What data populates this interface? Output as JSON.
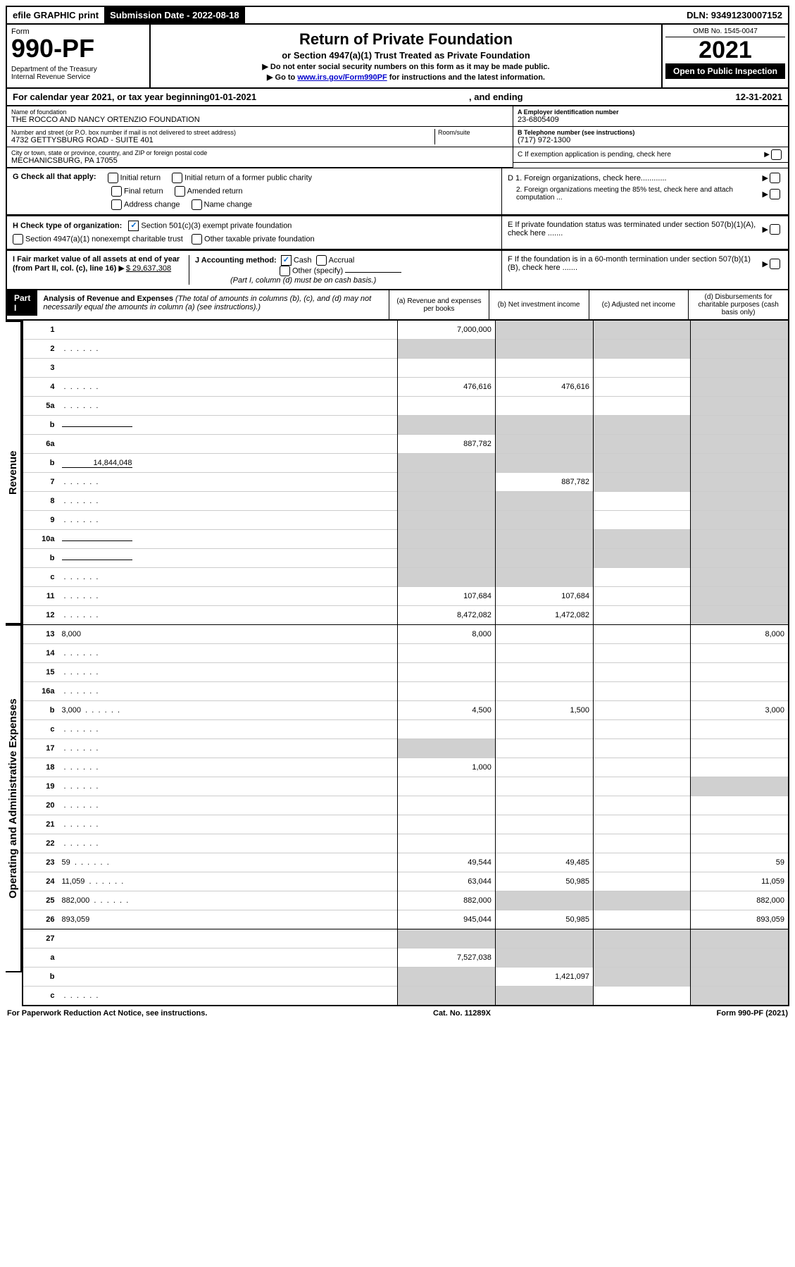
{
  "top": {
    "efile": "efile GRAPHIC print",
    "subdate": "Submission Date - 2022-08-18",
    "dln": "DLN: 93491230007152"
  },
  "header": {
    "form_label": "Form",
    "form_number": "990-PF",
    "dept": "Department of the Treasury\nInternal Revenue Service",
    "title": "Return of Private Foundation",
    "sub1": "or Section 4947(a)(1) Trust Treated as Private Foundation",
    "sub2a": "▶ Do not enter social security numbers on this form as it may be made public.",
    "sub2b_pre": "▶ Go to ",
    "sub2b_link": "www.irs.gov/Form990PF",
    "sub2b_post": " for instructions and the latest information.",
    "omb": "OMB No. 1545-0047",
    "year": "2021",
    "open": "Open to Public Inspection"
  },
  "cal": {
    "pre": "For calendar year 2021, or tax year beginning ",
    "start": "01-01-2021",
    "mid": ", and ending ",
    "end": "12-31-2021"
  },
  "name": {
    "label": "Name of foundation",
    "value": "THE ROCCO AND NANCY ORTENZIO FOUNDATION",
    "addr_label": "Number and street (or P.O. box number if mail is not delivered to street address)",
    "addr_value": "4732 GETTYSBURG ROAD - SUITE 401",
    "room_label": "Room/suite",
    "city_label": "City or town, state or province, country, and ZIP or foreign postal code",
    "city_value": "MECHANICSBURG, PA  17055",
    "ein_label": "A Employer identification number",
    "ein_value": "23-6805409",
    "tel_label": "B Telephone number (see instructions)",
    "tel_value": "(717) 972-1300",
    "c_label": "C If exemption application is pending, check here"
  },
  "g": {
    "label": "G Check all that apply:",
    "o1": "Initial return",
    "o2": "Initial return of a former public charity",
    "o3": "Final return",
    "o4": "Amended return",
    "o5": "Address change",
    "o6": "Name change",
    "d1": "D 1. Foreign organizations, check here............",
    "d2": "2. Foreign organizations meeting the 85% test, check here and attach computation ...",
    "e": "E  If private foundation status was terminated under section 507(b)(1)(A), check here .......",
    "f": "F  If the foundation is in a 60-month termination under section 507(b)(1)(B), check here ......."
  },
  "h": {
    "label": "H Check type of organization:",
    "o1": "Section 501(c)(3) exempt private foundation",
    "o2": "Section 4947(a)(1) nonexempt charitable trust",
    "o3": "Other taxable private foundation"
  },
  "i": {
    "label": "I Fair market value of all assets at end of year (from Part II, col. (c), line 16)",
    "value": "$  29,637,308"
  },
  "j": {
    "label": "J Accounting method:",
    "o1": "Cash",
    "o2": "Accrual",
    "o3": "Other (specify)",
    "note": "(Part I, column (d) must be on cash basis.)"
  },
  "part1": {
    "label": "Part I",
    "title": "Analysis of Revenue and Expenses",
    "desc": "(The total of amounts in columns (b), (c), and (d) may not necessarily equal the amounts in column (a) (see instructions).)",
    "col_a": "(a)   Revenue and expenses per books",
    "col_b": "(b)   Net investment income",
    "col_c": "(c)   Adjusted net income",
    "col_d": "(d)   Disbursements for charitable purposes (cash basis only)"
  },
  "side": {
    "revenue": "Revenue",
    "expenses": "Operating and Administrative Expenses"
  },
  "rows": [
    {
      "n": "1",
      "d": "",
      "a": "7,000,000",
      "b": "",
      "c": "",
      "ashade": false,
      "bshade": true,
      "cshade": true,
      "dshade": true
    },
    {
      "n": "2",
      "d": "",
      "a": "",
      "b": "",
      "c": "",
      "ashade": true,
      "bshade": true,
      "cshade": true,
      "dshade": true,
      "dots": true
    },
    {
      "n": "3",
      "d": "",
      "a": "",
      "b": "",
      "c": "",
      "dshade": true
    },
    {
      "n": "4",
      "d": "",
      "a": "476,616",
      "b": "476,616",
      "c": "",
      "dshade": true,
      "dots": true
    },
    {
      "n": "5a",
      "d": "",
      "a": "",
      "b": "",
      "c": "",
      "dshade": true,
      "dots": true
    },
    {
      "n": "b",
      "d": "",
      "a": "",
      "b": "",
      "c": "",
      "ashade": true,
      "bshade": true,
      "cshade": true,
      "dshade": true,
      "inline": true
    },
    {
      "n": "6a",
      "d": "",
      "a": "887,782",
      "b": "",
      "c": "",
      "bshade": true,
      "cshade": true,
      "dshade": true
    },
    {
      "n": "b",
      "d": "",
      "a": "",
      "b": "",
      "c": "",
      "ashade": true,
      "bshade": true,
      "cshade": true,
      "dshade": true,
      "inline": true,
      "inline_val": "14,844,048"
    },
    {
      "n": "7",
      "d": "",
      "a": "",
      "b": "887,782",
      "c": "",
      "ashade": true,
      "cshade": true,
      "dshade": true,
      "dots": true
    },
    {
      "n": "8",
      "d": "",
      "a": "",
      "b": "",
      "c": "",
      "ashade": true,
      "bshade": true,
      "dshade": true,
      "dots": true
    },
    {
      "n": "9",
      "d": "",
      "a": "",
      "b": "",
      "c": "",
      "ashade": true,
      "bshade": true,
      "dshade": true,
      "dots": true
    },
    {
      "n": "10a",
      "d": "",
      "a": "",
      "b": "",
      "c": "",
      "ashade": true,
      "bshade": true,
      "cshade": true,
      "dshade": true,
      "inline": true
    },
    {
      "n": "b",
      "d": "",
      "a": "",
      "b": "",
      "c": "",
      "ashade": true,
      "bshade": true,
      "cshade": true,
      "dshade": true,
      "inline": true,
      "dots": true
    },
    {
      "n": "c",
      "d": "",
      "a": "",
      "b": "",
      "c": "",
      "ashade": true,
      "bshade": true,
      "dshade": true,
      "dots": true
    },
    {
      "n": "11",
      "d": "",
      "a": "107,684",
      "b": "107,684",
      "c": "",
      "dshade": true,
      "dots": true
    },
    {
      "n": "12",
      "d": "",
      "a": "8,472,082",
      "b": "1,472,082",
      "c": "",
      "dshade": true,
      "dots": true,
      "sect": true
    },
    {
      "n": "13",
      "d": "8,000",
      "a": "8,000",
      "b": "",
      "c": ""
    },
    {
      "n": "14",
      "d": "",
      "a": "",
      "b": "",
      "c": "",
      "dots": true
    },
    {
      "n": "15",
      "d": "",
      "a": "",
      "b": "",
      "c": "",
      "dots": true
    },
    {
      "n": "16a",
      "d": "",
      "a": "",
      "b": "",
      "c": "",
      "dots": true
    },
    {
      "n": "b",
      "d": "3,000",
      "a": "4,500",
      "b": "1,500",
      "c": "",
      "dots": true
    },
    {
      "n": "c",
      "d": "",
      "a": "",
      "b": "",
      "c": "",
      "dots": true
    },
    {
      "n": "17",
      "d": "",
      "a": "",
      "b": "",
      "c": "",
      "ashade": true,
      "dots": true
    },
    {
      "n": "18",
      "d": "",
      "a": "1,000",
      "b": "",
      "c": "",
      "dots": true
    },
    {
      "n": "19",
      "d": "",
      "a": "",
      "b": "",
      "c": "",
      "dshade": true,
      "dots": true
    },
    {
      "n": "20",
      "d": "",
      "a": "",
      "b": "",
      "c": "",
      "dots": true
    },
    {
      "n": "21",
      "d": "",
      "a": "",
      "b": "",
      "c": "",
      "dots": true
    },
    {
      "n": "22",
      "d": "",
      "a": "",
      "b": "",
      "c": "",
      "dots": true
    },
    {
      "n": "23",
      "d": "59",
      "a": "49,544",
      "b": "49,485",
      "c": "",
      "dots": true
    },
    {
      "n": "24",
      "d": "11,059",
      "a": "63,044",
      "b": "50,985",
      "c": "",
      "dots": true
    },
    {
      "n": "25",
      "d": "882,000",
      "a": "882,000",
      "b": "",
      "c": "",
      "bshade": true,
      "cshade": true,
      "dots": true
    },
    {
      "n": "26",
      "d": "893,059",
      "a": "945,044",
      "b": "50,985",
      "c": "",
      "sect": true
    },
    {
      "n": "27",
      "d": "",
      "a": "",
      "b": "",
      "c": "",
      "ashade": true,
      "bshade": true,
      "cshade": true,
      "dshade": true
    },
    {
      "n": "a",
      "d": "",
      "a": "7,527,038",
      "b": "",
      "c": "",
      "bshade": true,
      "cshade": true,
      "dshade": true
    },
    {
      "n": "b",
      "d": "",
      "a": "",
      "b": "1,421,097",
      "c": "",
      "ashade": true,
      "cshade": true,
      "dshade": true
    },
    {
      "n": "c",
      "d": "",
      "a": "",
      "b": "",
      "c": "",
      "ashade": true,
      "bshade": true,
      "dshade": true,
      "dots": true
    }
  ],
  "footer": {
    "left": "For Paperwork Reduction Act Notice, see instructions.",
    "mid": "Cat. No. 11289X",
    "right": "Form 990-PF (2021)"
  },
  "colors": {
    "shade": "#d0d0d0",
    "link": "#0000cc"
  }
}
